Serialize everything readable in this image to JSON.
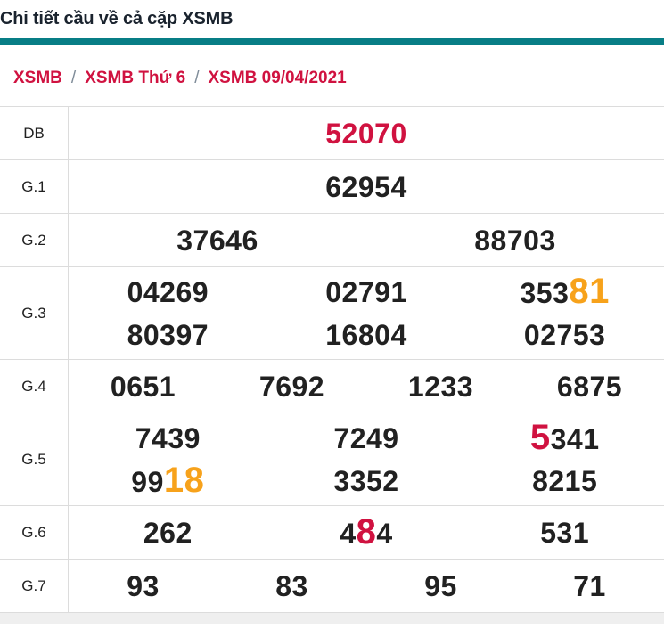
{
  "page": {
    "title": "Chi tiết cầu về cả cặp XSMB"
  },
  "colors": {
    "accent_teal": "#087e86",
    "highlight_red": "#d01240",
    "highlight_orange": "#f7a21b",
    "number_dark": "#212121",
    "separator_gray": "#7f8c99",
    "border_gray": "#dcdcdc"
  },
  "breadcrumb": {
    "separator": "/",
    "items": [
      "XSMB",
      "XSMB Thứ 6",
      "XSMB 09/04/2021"
    ]
  },
  "table": {
    "rows": [
      {
        "label": "DB",
        "lines": [
          [
            [
              {
                "text": "52070",
                "color": "red"
              }
            ]
          ]
        ]
      },
      {
        "label": "G.1",
        "lines": [
          [
            [
              {
                "text": "62954"
              }
            ]
          ]
        ]
      },
      {
        "label": "G.2",
        "lines": [
          [
            [
              {
                "text": "37646"
              }
            ],
            [
              {
                "text": "88703"
              }
            ]
          ]
        ]
      },
      {
        "label": "G.3",
        "lines": [
          [
            [
              {
                "text": "04269"
              }
            ],
            [
              {
                "text": "02791"
              }
            ],
            [
              {
                "text": "353"
              },
              {
                "text": "81",
                "color": "orange",
                "big": true
              }
            ]
          ],
          [
            [
              {
                "text": "80397"
              }
            ],
            [
              {
                "text": "16804"
              }
            ],
            [
              {
                "text": "02753"
              }
            ]
          ]
        ]
      },
      {
        "label": "G.4",
        "lines": [
          [
            [
              {
                "text": "0651"
              }
            ],
            [
              {
                "text": "7692"
              }
            ],
            [
              {
                "text": "1233"
              }
            ],
            [
              {
                "text": "6875"
              }
            ]
          ]
        ]
      },
      {
        "label": "G.5",
        "lines": [
          [
            [
              {
                "text": "7439"
              }
            ],
            [
              {
                "text": "7249"
              }
            ],
            [
              {
                "text": "5",
                "color": "red",
                "big": true
              },
              {
                "text": "341"
              }
            ]
          ],
          [
            [
              {
                "text": "99"
              },
              {
                "text": "18",
                "color": "orange",
                "big": true
              }
            ],
            [
              {
                "text": "3352"
              }
            ],
            [
              {
                "text": "8215"
              }
            ]
          ]
        ]
      },
      {
        "label": "G.6",
        "lines": [
          [
            [
              {
                "text": "262"
              }
            ],
            [
              {
                "text": "4"
              },
              {
                "text": "8",
                "color": "red",
                "big": true
              },
              {
                "text": "4"
              }
            ],
            [
              {
                "text": "531"
              }
            ]
          ]
        ]
      },
      {
        "label": "G.7",
        "lines": [
          [
            [
              {
                "text": "93"
              }
            ],
            [
              {
                "text": "83"
              }
            ],
            [
              {
                "text": "95"
              }
            ],
            [
              {
                "text": "71"
              }
            ]
          ]
        ]
      }
    ]
  }
}
